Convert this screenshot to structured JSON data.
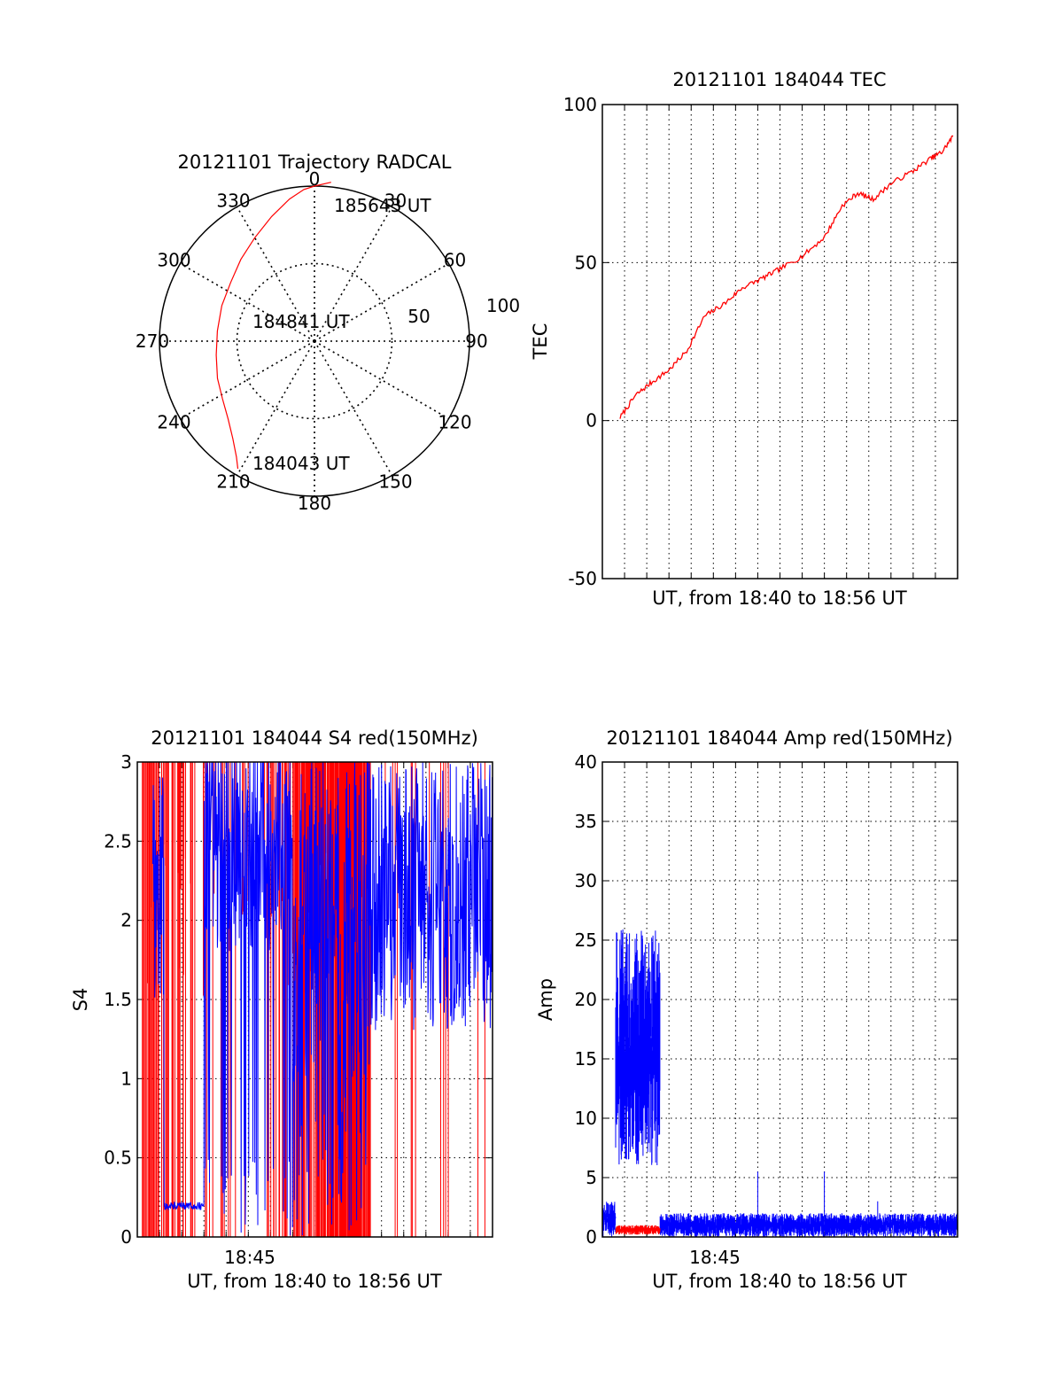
{
  "chart_data": [
    {
      "id": "trajectory",
      "type": "polar",
      "title": "20121101 Trajectory RADCAL",
      "azimuth_labels": [
        "0",
        "30",
        "60",
        "90",
        "120",
        "150",
        "180",
        "210",
        "240",
        "270",
        "300",
        "330"
      ],
      "radial_labels": [
        "50",
        "100"
      ],
      "radial_ticks": [
        50,
        100
      ],
      "radius_max": 100,
      "trajectory": {
        "color": "#ff0000",
        "points": [
          [
            211,
            96
          ],
          [
            214,
            90
          ],
          [
            220,
            82
          ],
          [
            228,
            75
          ],
          [
            238,
            70
          ],
          [
            249,
            67
          ],
          [
            262,
            64
          ],
          [
            276,
            63
          ],
          [
            291,
            64
          ],
          [
            305,
            66
          ],
          [
            318,
            71
          ],
          [
            330,
            77
          ],
          [
            341,
            85
          ],
          [
            350,
            93
          ],
          [
            356,
            98
          ],
          [
            360,
            100
          ],
          [
            366,
            103
          ]
        ]
      },
      "annotations": [
        {
          "label": "185643 UT",
          "at": "end"
        },
        {
          "label": "184841 UT",
          "at": "middle"
        },
        {
          "label": "184043 UT",
          "at": "start"
        }
      ]
    },
    {
      "id": "tec",
      "type": "line",
      "title": "20121101 184044 TEC",
      "xlabel": "UT, from 18:40 to 18:56 UT",
      "ylabel": "TEC",
      "ylim": [
        -50,
        100
      ],
      "yticks": [
        "100",
        "50",
        "0",
        "-50"
      ],
      "ytick_values": [
        100,
        50,
        0,
        -50
      ],
      "xlim": [
        0,
        16
      ],
      "grid": true,
      "series": [
        {
          "color": "#ff0000",
          "x": [
            0.8,
            1.5,
            2.2,
            3.0,
            3.8,
            4.6,
            5.5,
            6.3,
            7.2,
            8.0,
            9.0,
            10.0,
            10.8,
            11.5,
            12.2,
            13.0,
            14.0,
            14.8,
            15.3,
            15.8
          ],
          "y": [
            1,
            8,
            12,
            16,
            22,
            33,
            37,
            42,
            45,
            48,
            52,
            58,
            68,
            72,
            70,
            75,
            79,
            83,
            85,
            90
          ]
        }
      ]
    },
    {
      "id": "s4",
      "type": "line",
      "title": "20121101 184044 S4 red(150MHz)",
      "xlabel": "UT, from 18:40 to 18:56 UT",
      "ylabel": "S4",
      "ylim": [
        0,
        3
      ],
      "yticks": [
        "3",
        "2.5",
        "2",
        "1.5",
        "1",
        "0.5",
        "0"
      ],
      "ytick_values": [
        3,
        2.5,
        2,
        1.5,
        1,
        0.5,
        0
      ],
      "xlim": [
        0,
        16
      ],
      "xtick_label": "18:45",
      "grid": true,
      "series": [
        {
          "name": "",
          "color": "#0000ff"
        },
        {
          "name": "",
          "color": "#ff0000"
        }
      ]
    },
    {
      "id": "amp",
      "type": "line",
      "title": "20121101 184044 Amp red(150MHz)",
      "xlabel": "UT, from 18:40 to 18:56 UT",
      "ylabel": "Amp",
      "ylim": [
        0,
        40
      ],
      "yticks": [
        "40",
        "35",
        "30",
        "25",
        "20",
        "15",
        "10",
        "5",
        "0"
      ],
      "ytick_values": [
        40,
        35,
        30,
        25,
        20,
        15,
        10,
        5,
        0
      ],
      "xlim": [
        0,
        16
      ],
      "xtick_label": "18:45",
      "grid": true,
      "series": [
        {
          "name": "",
          "color": "#0000ff",
          "segments": [
            [
              0.0,
              0.6,
              0,
              3
            ],
            [
              0.6,
              2.6,
              6,
              26
            ],
            [
              2.6,
              16,
              0,
              2
            ]
          ],
          "spikes": [
            [
              7.0,
              5.5
            ],
            [
              10.0,
              5.5
            ],
            [
              12.4,
              3
            ]
          ]
        },
        {
          "name": "",
          "color": "#ff0000",
          "segments": [
            [
              0.6,
              2.6,
              0.2,
              1.0
            ]
          ]
        }
      ]
    }
  ]
}
